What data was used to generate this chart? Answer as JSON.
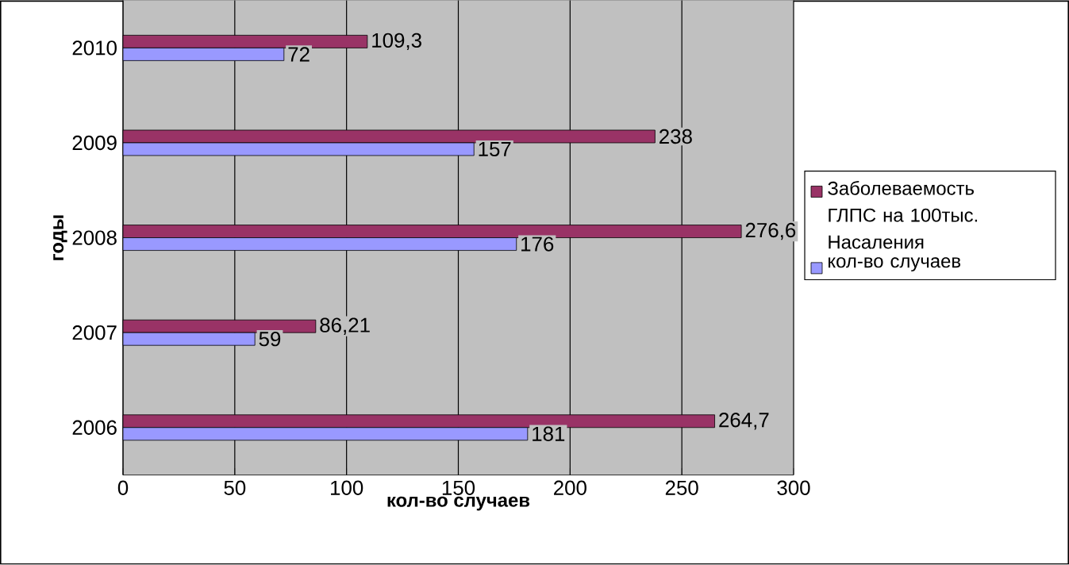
{
  "chart_data": {
    "type": "bar",
    "orientation": "horizontal",
    "xlabel": "кол-во случаев",
    "ylabel": "годы",
    "categories": [
      "2010",
      "2009",
      "2008",
      "2007",
      "2006"
    ],
    "series": [
      {
        "name": "Заболеваемость ГЛПС на 100тыс. Насаления",
        "color": "#993366",
        "values": [
          109.3,
          238,
          276.6,
          86.21,
          264.7
        ],
        "value_labels": [
          "109,3",
          "238",
          "276,6",
          "86,21",
          "264,7"
        ]
      },
      {
        "name": "кол-во случаев",
        "color": "#9999ff",
        "values": [
          72,
          157,
          176,
          59,
          181
        ],
        "value_labels": [
          "72",
          "157",
          "176",
          "59",
          "181"
        ]
      }
    ],
    "xlim": [
      0,
      300
    ],
    "xticks": [
      0,
      50,
      100,
      150,
      200,
      250,
      300
    ],
    "grid": "x",
    "legend": "right"
  }
}
